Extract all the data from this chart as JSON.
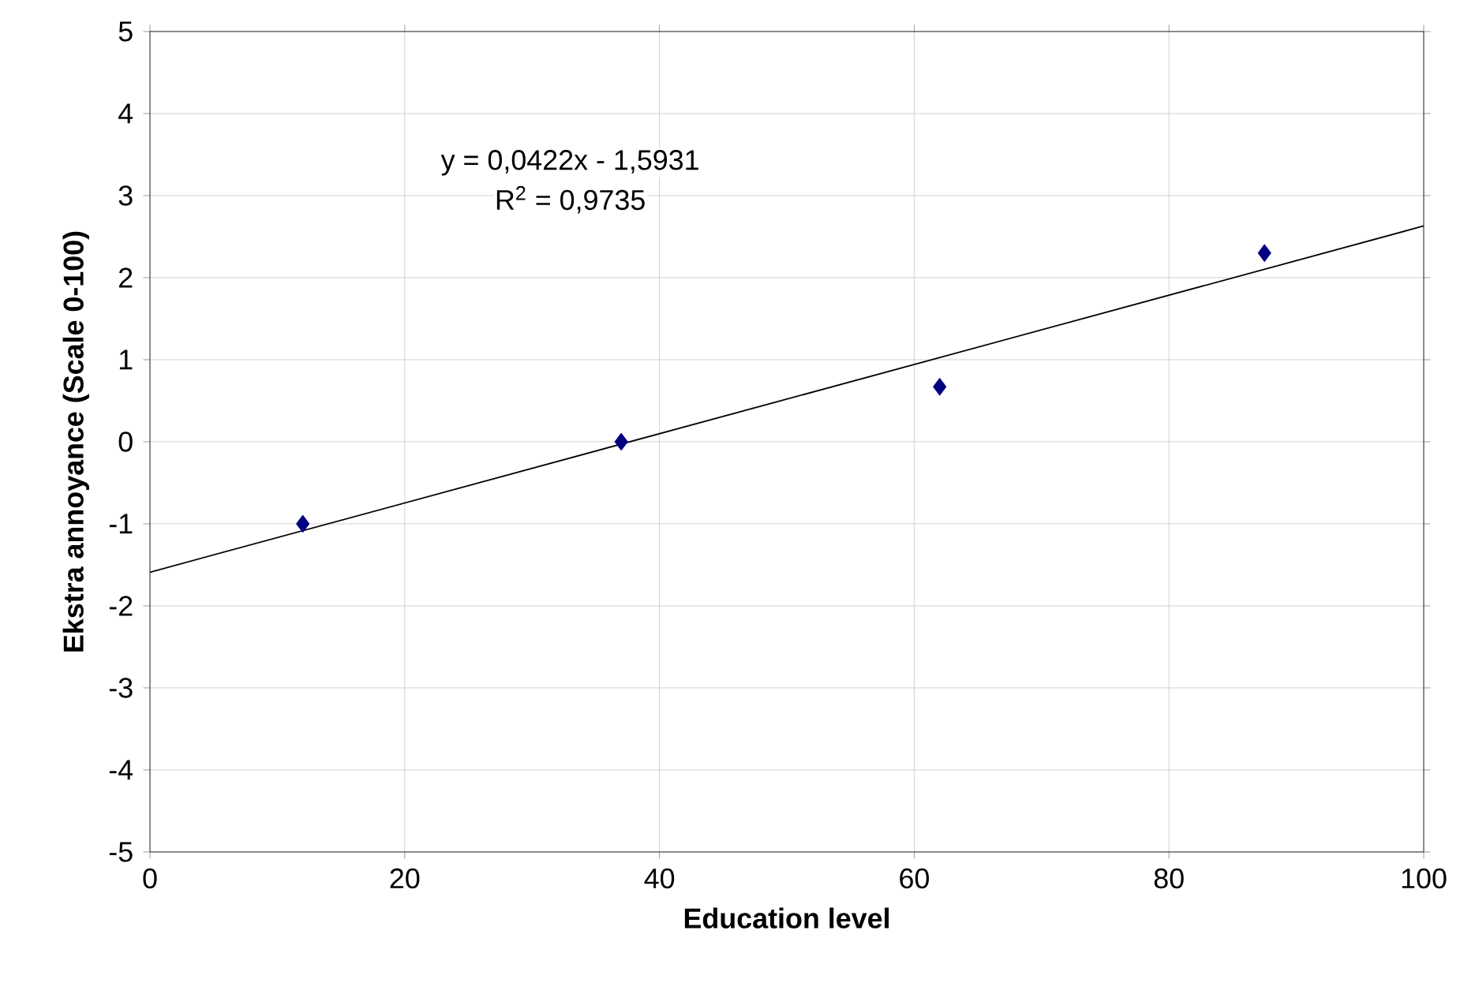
{
  "chart_data": {
    "type": "scatter",
    "xlabel": "Education level",
    "ylabel": "Ekstra annoyance (Scale 0-100)",
    "series": [
      {
        "color": "#000080",
        "marker": "diamond",
        "x": [
          12,
          37,
          62,
          87.5
        ],
        "values": [
          -1,
          0,
          0.67,
          2.3
        ]
      },
      {
        "type": "line",
        "color": "#000000",
        "marker": "none",
        "x": [
          0,
          100
        ],
        "values": [
          -1.59,
          2.63
        ]
      }
    ],
    "annotations": [
      "y = 0,0422x - 1,5931",
      "R$^{2}$ = 0,9735"
    ],
    "xlim": [
      0,
      100
    ],
    "ylim": [
      -5,
      5
    ],
    "xticks": [
      0,
      20,
      40,
      60,
      80,
      100
    ],
    "yticks": [
      -5,
      -4,
      -3,
      -2,
      -1,
      0,
      1,
      2,
      3,
      4,
      5
    ],
    "grid": true
  }
}
